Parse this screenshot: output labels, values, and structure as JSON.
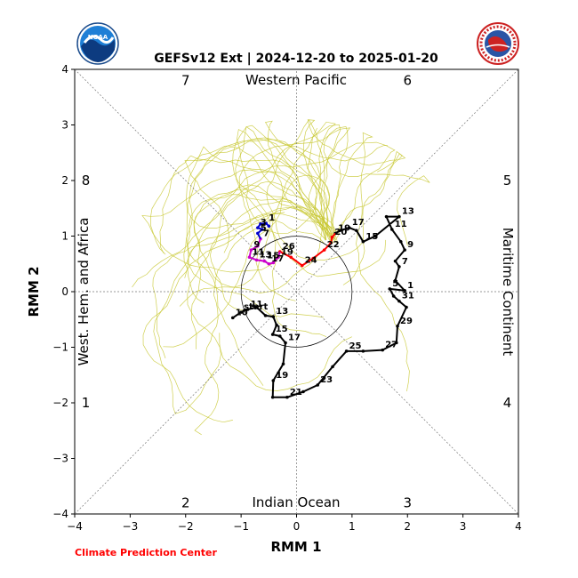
{
  "chart_data": {
    "type": "line",
    "title": "GEFSv12 Ext | 2024-12-20 to 2025-01-20",
    "xlabel": "RMM 1",
    "ylabel": "RMM 2",
    "xlim": [
      -4,
      4
    ],
    "ylim": [
      -4,
      4
    ],
    "xticks": [
      "−4",
      "−3",
      "−2",
      "−1",
      "0",
      "1",
      "2",
      "3",
      "4"
    ],
    "yticks": [
      "−4",
      "−3",
      "−2",
      "−1",
      "0",
      "1",
      "2",
      "3",
      "4"
    ],
    "regions": {
      "top": "Western Pacific",
      "bottom": "Indian Ocean",
      "left": "West. Hem. and Africa",
      "right": "Maritime Continent"
    },
    "phases": [
      {
        "label": "1",
        "x": -3.8,
        "y": -2.0
      },
      {
        "label": "2",
        "x": -2.0,
        "y": -3.8
      },
      {
        "label": "3",
        "x": 2.0,
        "y": -3.8
      },
      {
        "label": "4",
        "x": 3.8,
        "y": -2.0
      },
      {
        "label": "5",
        "x": 3.8,
        "y": 2.0
      },
      {
        "label": "6",
        "x": 2.0,
        "y": 3.8
      },
      {
        "label": "7",
        "x": -2.0,
        "y": 3.8
      },
      {
        "label": "8",
        "x": -3.8,
        "y": 2.0
      }
    ],
    "ensemble_color": "#c8c832",
    "ensemble_members": 30,
    "unit_circle_radius": 1,
    "series": [
      {
        "name": "observed",
        "color": "#000000",
        "points": [
          {
            "x": -1.15,
            "y": -0.47,
            "label": "10"
          },
          {
            "x": -1.0,
            "y": -0.37,
            "label": "start"
          },
          {
            "x": -0.88,
            "y": -0.32,
            "label": "11"
          },
          {
            "x": -0.72,
            "y": -0.28
          },
          {
            "x": -0.56,
            "y": -0.43
          },
          {
            "x": -0.42,
            "y": -0.45,
            "label": "13"
          },
          {
            "x": -0.36,
            "y": -0.6
          },
          {
            "x": -0.43,
            "y": -0.77,
            "label": "15"
          },
          {
            "x": -0.3,
            "y": -0.8
          },
          {
            "x": -0.2,
            "y": -0.92,
            "label": "17"
          },
          {
            "x": -0.24,
            "y": -1.3
          },
          {
            "x": -0.42,
            "y": -1.6,
            "label": "19"
          },
          {
            "x": -0.43,
            "y": -1.9
          },
          {
            "x": -0.17,
            "y": -1.9,
            "label": "21"
          },
          {
            "x": 0.12,
            "y": -1.8
          },
          {
            "x": 0.38,
            "y": -1.68,
            "label": "23"
          },
          {
            "x": 0.65,
            "y": -1.35
          },
          {
            "x": 0.9,
            "y": -1.07,
            "label": "25"
          },
          {
            "x": 1.2,
            "y": -1.07
          },
          {
            "x": 1.55,
            "y": -1.05,
            "label": "27"
          },
          {
            "x": 1.8,
            "y": -0.92
          },
          {
            "x": 1.82,
            "y": -0.62,
            "label": "29"
          },
          {
            "x": 1.98,
            "y": -0.28
          },
          {
            "x": 1.85,
            "y": -0.17,
            "label": "31"
          },
          {
            "x": 1.75,
            "y": -0.08
          },
          {
            "x": 1.68,
            "y": 0.05,
            "label": "5"
          },
          {
            "x": 1.95,
            "y": 0.02,
            "label": "1"
          },
          {
            "x": 1.78,
            "y": 0.2
          },
          {
            "x": 1.85,
            "y": 0.45,
            "label": "7"
          },
          {
            "x": 1.78,
            "y": 0.55
          },
          {
            "x": 1.95,
            "y": 0.75,
            "label": "9"
          },
          {
            "x": 1.88,
            "y": 0.9
          },
          {
            "x": 1.72,
            "y": 1.12,
            "label": "11"
          },
          {
            "x": 1.62,
            "y": 1.35
          },
          {
            "x": 1.85,
            "y": 1.35,
            "label": "13"
          },
          {
            "x": 1.42,
            "y": 1.0
          },
          {
            "x": 1.2,
            "y": 0.9,
            "label": "15"
          },
          {
            "x": 1.08,
            "y": 1.1
          },
          {
            "x": 0.95,
            "y": 1.15,
            "label": "17"
          },
          {
            "x": 0.78,
            "y": 1.1
          },
          {
            "x": 0.7,
            "y": 1.05,
            "label": "19"
          }
        ]
      },
      {
        "name": "forecast_red",
        "color": "#ff0000",
        "points": [
          {
            "x": 0.7,
            "y": 1.05
          },
          {
            "x": 0.64,
            "y": 0.98,
            "label": "20"
          },
          {
            "x": 0.62,
            "y": 0.88
          },
          {
            "x": 0.5,
            "y": 0.75,
            "label": "22"
          },
          {
            "x": 0.3,
            "y": 0.6
          },
          {
            "x": 0.1,
            "y": 0.47,
            "label": "24"
          },
          {
            "x": -0.1,
            "y": 0.62
          },
          {
            "x": -0.3,
            "y": 0.72,
            "label": "26"
          }
        ]
      },
      {
        "name": "forecast_magenta",
        "color": "#cc00cc",
        "points": [
          {
            "x": -0.3,
            "y": 0.72
          },
          {
            "x": -0.33,
            "y": 0.62,
            "label": "19"
          },
          {
            "x": -0.42,
            "y": 0.52
          },
          {
            "x": -0.5,
            "y": 0.5,
            "label": "17"
          },
          {
            "x": -0.58,
            "y": 0.55,
            "label": "15"
          },
          {
            "x": -0.72,
            "y": 0.57,
            "label": "13"
          },
          {
            "x": -0.85,
            "y": 0.62,
            "label": "11"
          },
          {
            "x": -0.82,
            "y": 0.75,
            "label": "9"
          },
          {
            "x": -0.7,
            "y": 0.82
          },
          {
            "x": -0.65,
            "y": 0.95,
            "label": "7"
          }
        ]
      },
      {
        "name": "forecast_blue",
        "color": "#0000cc",
        "points": [
          {
            "x": -0.65,
            "y": 0.95
          },
          {
            "x": -0.7,
            "y": 1.05,
            "label": "5"
          },
          {
            "x": -0.62,
            "y": 1.12
          },
          {
            "x": -0.7,
            "y": 1.15,
            "label": "3"
          },
          {
            "x": -0.65,
            "y": 1.22
          },
          {
            "x": -0.55,
            "y": 1.23,
            "label": "1"
          },
          {
            "x": -0.5,
            "y": 1.18
          }
        ]
      }
    ]
  },
  "credit": "Climate Prediction Center",
  "credit_color": "#ff0000",
  "logos": {
    "left": {
      "name": "noaa-logo",
      "text": "NOAA"
    },
    "right": {
      "name": "nws-logo",
      "text": "NATIONAL WEATHER SERVICE"
    }
  }
}
